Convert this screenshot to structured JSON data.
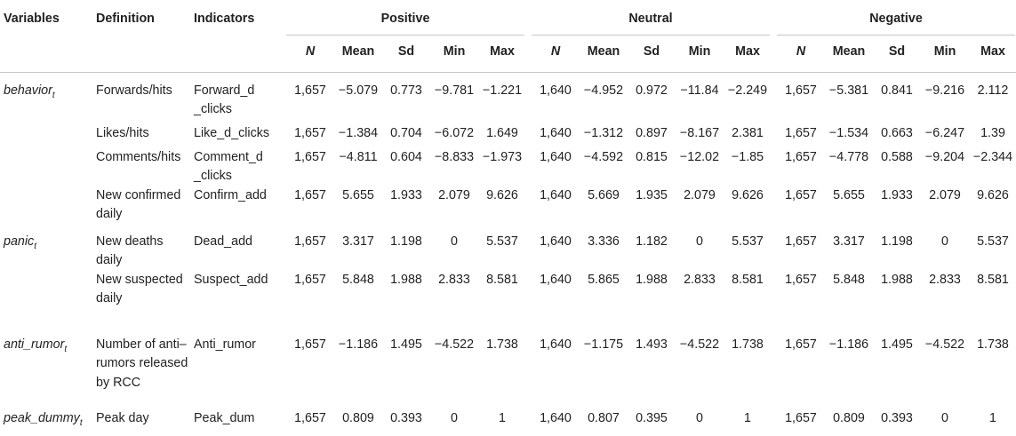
{
  "headers": {
    "variables": "Variables",
    "definition": "Definition",
    "indicators": "Indicators",
    "groups": [
      "Positive",
      "Neutral",
      "Negative"
    ],
    "stats": [
      "N",
      "Mean",
      "Sd",
      "Min",
      "Max"
    ]
  },
  "rows": [
    {
      "variable": "behavior",
      "variable_sub": "t",
      "definition": "Forwards/hits",
      "indicator": "Forward_d _clicks",
      "values": [
        [
          "1,657",
          "−5.079",
          "0.773",
          "−9.781",
          "−1.221"
        ],
        [
          "1,640",
          "−4.952",
          "0.972",
          "−11.84",
          "−2.249"
        ],
        [
          "1,657",
          "−5.381",
          "0.841",
          "−9.216",
          "2.112"
        ]
      ]
    },
    {
      "variable": "",
      "variable_sub": "",
      "definition": "Likes/hits",
      "indicator": "Like_d_clicks",
      "values": [
        [
          "1,657",
          "−1.384",
          "0.704",
          "−6.072",
          "1.649"
        ],
        [
          "1,640",
          "−1.312",
          "0.897",
          "−8.167",
          "2.381"
        ],
        [
          "1,657",
          "−1.534",
          "0.663",
          "−6.247",
          "1.39"
        ]
      ]
    },
    {
      "variable": "",
      "variable_sub": "",
      "definition": "Comments/hits",
      "indicator": "Comment_d _clicks",
      "values": [
        [
          "1,657",
          "−4.811",
          "0.604",
          "−8.833",
          "−1.973"
        ],
        [
          "1,640",
          "−4.592",
          "0.815",
          "−12.02",
          "−1.85"
        ],
        [
          "1,657",
          "−4.778",
          "0.588",
          "−9.204",
          "−2.344"
        ]
      ]
    },
    {
      "variable": "",
      "variable_sub": "",
      "definition": "New confirmed daily",
      "indicator": "Confirm_add",
      "values": [
        [
          "1,657",
          "5.655",
          "1.933",
          "2.079",
          "9.626"
        ],
        [
          "1,640",
          "5.669",
          "1.935",
          "2.079",
          "9.626"
        ],
        [
          "1,657",
          "5.655",
          "1.933",
          "2.079",
          "9.626"
        ]
      ]
    },
    {
      "variable": "panic",
      "variable_sub": "t",
      "definition": "New deaths daily",
      "indicator": "Dead_add",
      "values": [
        [
          "1,657",
          "3.317",
          "1.198",
          "0",
          "5.537"
        ],
        [
          "1,640",
          "3.336",
          "1.182",
          "0",
          "5.537"
        ],
        [
          "1,657",
          "3.317",
          "1.198",
          "0",
          "5.537"
        ]
      ]
    },
    {
      "variable": "",
      "variable_sub": "",
      "definition": "New suspected daily",
      "indicator": "Suspect_add",
      "values": [
        [
          "1,657",
          "5.848",
          "1.988",
          "2.833",
          "8.581"
        ],
        [
          "1,640",
          "5.865",
          "1.988",
          "2.833",
          "8.581"
        ],
        [
          "1,657",
          "5.848",
          "1.988",
          "2.833",
          "8.581"
        ]
      ]
    },
    {
      "variable": "anti_rumor",
      "variable_sub": "t",
      "definition": "Number of anti–rumors released by RCC",
      "indicator": "Anti_rumor",
      "values": [
        [
          "1,657",
          "−1.186",
          "1.495",
          "−4.522",
          "1.738"
        ],
        [
          "1,640",
          "−1.175",
          "1.493",
          "−4.522",
          "1.738"
        ],
        [
          "1,657",
          "−1.186",
          "1.495",
          "−4.522",
          "1.738"
        ]
      ]
    },
    {
      "variable": "peak_dummy",
      "variable_sub": "t",
      "definition": "Peak day",
      "indicator": "Peak_dum",
      "values": [
        [
          "1,657",
          "0.809",
          "0.393",
          "0",
          "1"
        ],
        [
          "1,640",
          "0.807",
          "0.395",
          "0",
          "1"
        ],
        [
          "1,657",
          "0.809",
          "0.393",
          "0",
          "1"
        ]
      ]
    }
  ]
}
